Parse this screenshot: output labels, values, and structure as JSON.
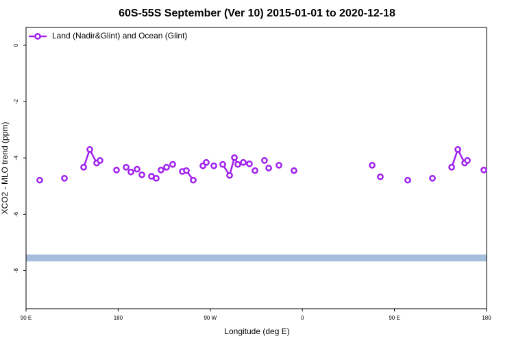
{
  "chart_data": {
    "type": "line",
    "title": "60S-55S September (Ver 10)   2015-01-01 to 2020-12-18",
    "x_label": "Longitude (deg E)",
    "y_label": "XCO2 - MLO trend (ppm)",
    "xlim": [
      90,
      540
    ],
    "ylim": [
      -9.35,
      0.63
    ],
    "xticks": [
      {
        "value": 90,
        "label": "90 E"
      },
      {
        "value": 180,
        "label": "180"
      },
      {
        "value": 270,
        "label": "90 W"
      },
      {
        "value": 360,
        "label": "0"
      },
      {
        "value": 450,
        "label": "90 E"
      },
      {
        "value": 540,
        "label": "180"
      }
    ],
    "yticks": [
      0,
      -2,
      -4,
      -6,
      -8
    ],
    "legend": "top-left",
    "reference_band": {
      "value": -7.55,
      "color": "#a6bdde"
    },
    "series": [
      {
        "name": "Land (Nadir&Glint) and Ocean (Glint)",
        "color": "#a020f0",
        "x": [
          103.4,
          null,
          127.5,
          null,
          146.3,
          152.3,
          159.0,
          162.3,
          null,
          178.4,
          null,
          187.8,
          null,
          192.5,
          null,
          198.5,
          null,
          203.2,
          null,
          212.5,
          null,
          217.2,
          null,
          221.9,
          null,
          227.3,
          null,
          233.3,
          null,
          242.7,
          null,
          246.7,
          253.4,
          null,
          262.8,
          null,
          266.1,
          null,
          273.5,
          null,
          282.2,
          288.9,
          293.6,
          296.9,
          null,
          302.3,
          null,
          308.3,
          null,
          313.7,
          null,
          323.0,
          null,
          327.1,
          null,
          337.1,
          null,
          351.8,
          null,
          428.2,
          null,
          436.2,
          null,
          463.0,
          null,
          487.1,
          null,
          505.9,
          511.9,
          518.6,
          521.3,
          null,
          537.3
        ],
        "values": [
          -4.79,
          null,
          -4.72,
          null,
          -4.33,
          -3.7,
          -4.18,
          -4.09,
          null,
          -4.43,
          null,
          -4.33,
          null,
          -4.5,
          null,
          -4.4,
          null,
          -4.6,
          null,
          -4.65,
          null,
          -4.72,
          null,
          -4.43,
          null,
          -4.33,
          null,
          -4.23,
          null,
          -4.48,
          null,
          -4.45,
          -4.79,
          null,
          -4.28,
          null,
          -4.16,
          null,
          -4.28,
          null,
          -4.23,
          -4.62,
          -3.99,
          -4.23,
          null,
          -4.16,
          null,
          -4.21,
          null,
          -4.45,
          null,
          -4.09,
          null,
          -4.36,
          null,
          -4.26,
          null,
          -4.45,
          null,
          -4.26,
          null,
          -4.67,
          null,
          -4.79,
          null,
          -4.72,
          null,
          -4.33,
          -3.7,
          -4.18,
          -4.09,
          null,
          -4.43
        ]
      }
    ]
  }
}
